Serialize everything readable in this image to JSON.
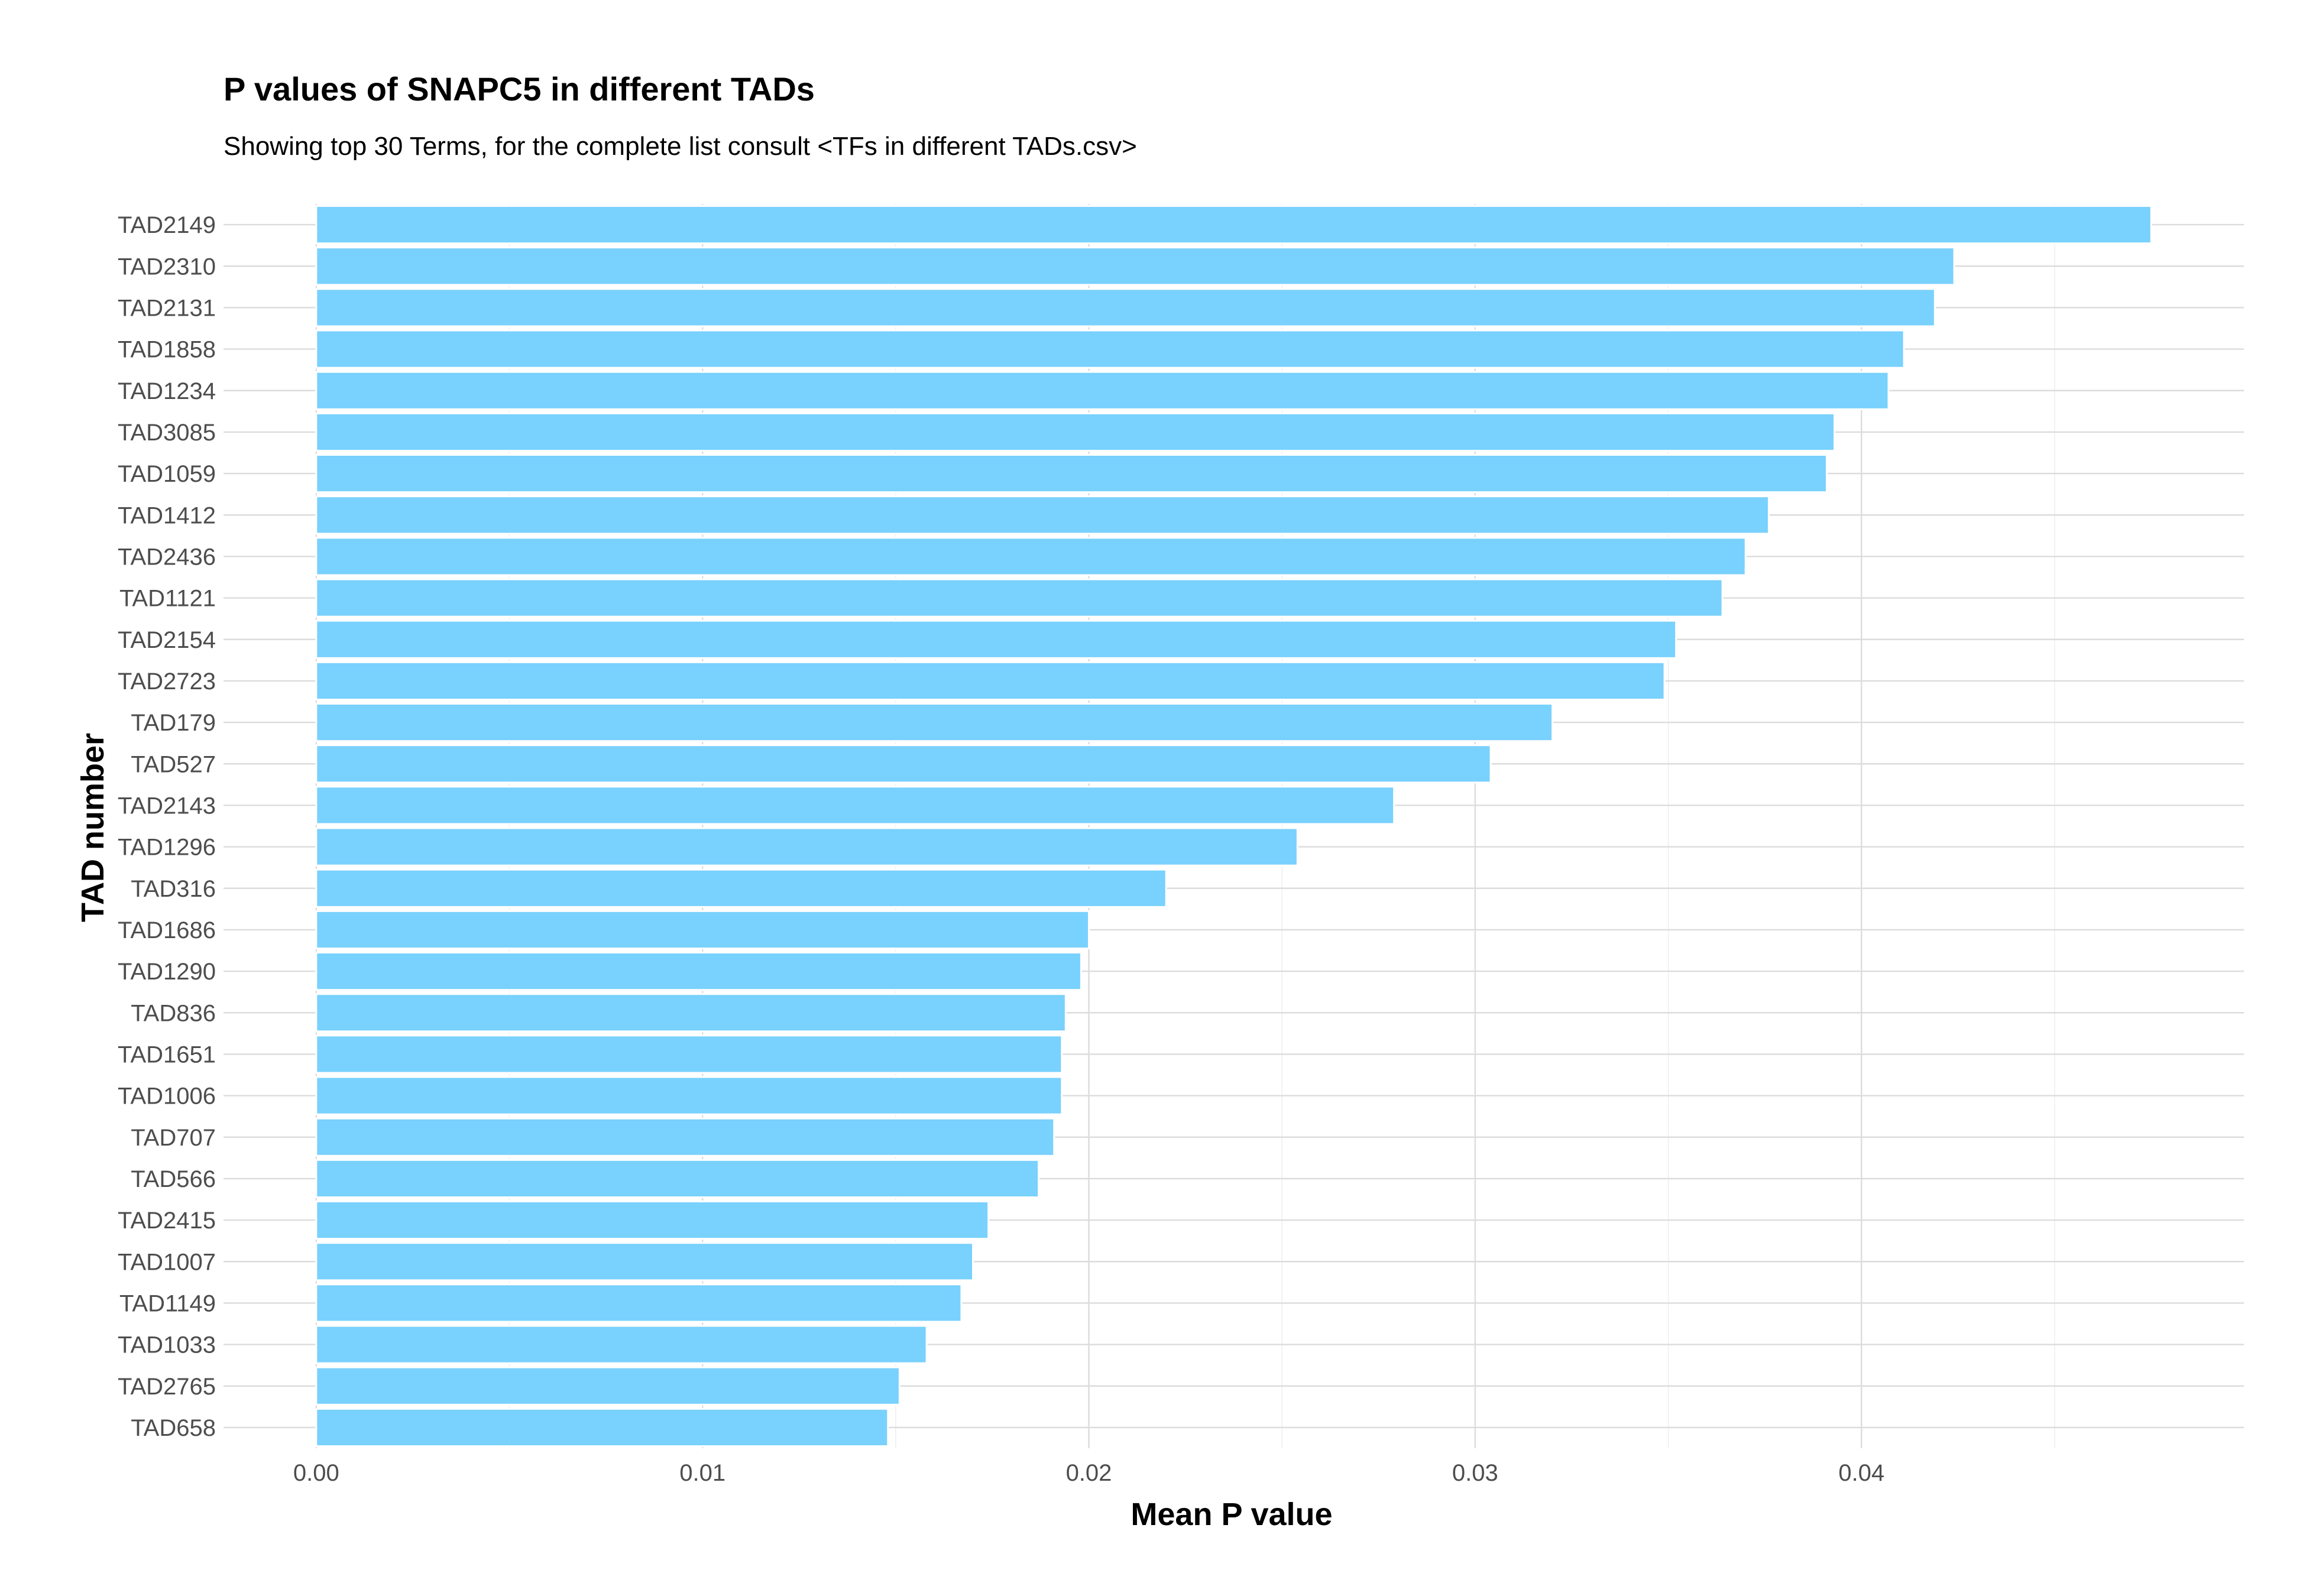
{
  "chart_data": {
    "type": "bar",
    "orientation": "horizontal",
    "title": "P values of SNAPC5 in different TADs",
    "subtitle": "Showing top 30 Terms, for the complete list consult <TFs in different TADs.csv>",
    "xlabel": "Mean P value",
    "ylabel": "TAD number",
    "xlim": [
      -0.0024,
      0.0499
    ],
    "x_ticks": [
      0.0,
      0.01,
      0.02,
      0.03,
      0.04
    ],
    "x_tick_labels": [
      "0.00",
      "0.01",
      "0.02",
      "0.03",
      "0.04"
    ],
    "grid": true,
    "bar_color": "#79d1fd",
    "categories": [
      "TAD2149",
      "TAD2310",
      "TAD2131",
      "TAD1858",
      "TAD1234",
      "TAD3085",
      "TAD1059",
      "TAD1412",
      "TAD2436",
      "TAD1121",
      "TAD2154",
      "TAD2723",
      "TAD179",
      "TAD527",
      "TAD2143",
      "TAD1296",
      "TAD316",
      "TAD1686",
      "TAD1290",
      "TAD836",
      "TAD1651",
      "TAD1006",
      "TAD707",
      "TAD566",
      "TAD2415",
      "TAD1007",
      "TAD1149",
      "TAD1033",
      "TAD2765",
      "TAD658"
    ],
    "values": [
      0.0475,
      0.0424,
      0.0419,
      0.0411,
      0.0407,
      0.0393,
      0.0391,
      0.0376,
      0.037,
      0.0364,
      0.0352,
      0.0349,
      0.032,
      0.0304,
      0.0279,
      0.0254,
      0.022,
      0.02,
      0.0198,
      0.0194,
      0.0193,
      0.0193,
      0.0191,
      0.0187,
      0.0174,
      0.017,
      0.0167,
      0.0158,
      0.0151,
      0.0148
    ]
  }
}
